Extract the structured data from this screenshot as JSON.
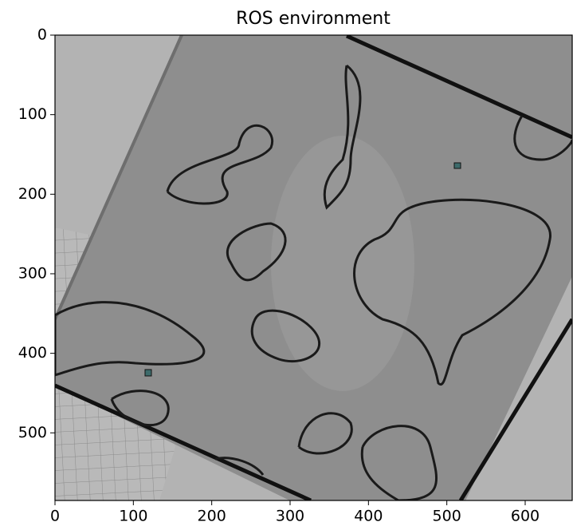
{
  "chart_data": {
    "type": "image",
    "title": "ROS environment",
    "xlim": [
      0,
      660
    ],
    "ylim": [
      585,
      0
    ],
    "xticks": [
      0,
      100,
      200,
      300,
      400,
      500,
      600
    ],
    "yticks": [
      0,
      100,
      200,
      300,
      400,
      500
    ]
  }
}
